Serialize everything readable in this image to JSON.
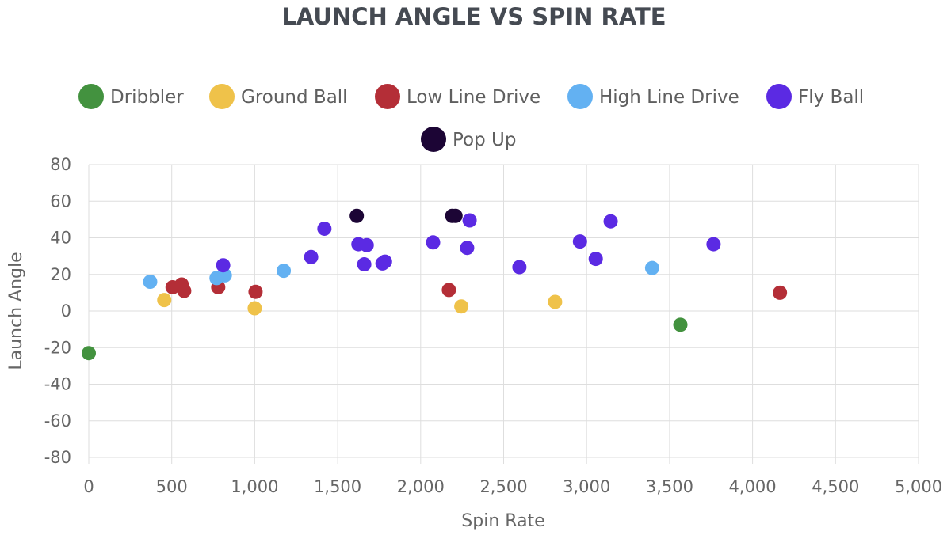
{
  "chart_data": {
    "type": "scatter",
    "title": "LAUNCH ANGLE VS SPIN RATE",
    "xlabel": "Spin Rate",
    "ylabel": "Launch Angle",
    "xlim": [
      0,
      5000
    ],
    "ylim": [
      -80,
      80
    ],
    "x_ticks": [
      0,
      500,
      1000,
      1500,
      2000,
      2500,
      3000,
      3500,
      4000,
      4500,
      5000
    ],
    "x_tick_labels": [
      "0",
      "500",
      "1,000",
      "1,500",
      "2,000",
      "2,500",
      "3,000",
      "3,500",
      "4,000",
      "4,500",
      "5,000"
    ],
    "y_ticks": [
      80,
      60,
      40,
      20,
      0,
      -20,
      -40,
      -60,
      -80
    ],
    "y_tick_labels": [
      "80",
      "60",
      "40",
      "20",
      "0",
      "-20",
      "-40",
      "-60",
      "-80"
    ],
    "grid": true,
    "legend_position": "top",
    "series": [
      {
        "name": "Dribbler",
        "color": "#43923f",
        "points": [
          [
            0,
            -23
          ],
          [
            3565,
            -7.5
          ]
        ]
      },
      {
        "name": "Ground Ball",
        "color": "#efc24a",
        "points": [
          [
            455,
            6
          ],
          [
            1000,
            1.5
          ],
          [
            2245,
            2.5
          ],
          [
            2810,
            5
          ]
        ]
      },
      {
        "name": "Low Line Drive",
        "color": "#b42e37",
        "points": [
          [
            505,
            13
          ],
          [
            560,
            14.5
          ],
          [
            575,
            11
          ],
          [
            780,
            13
          ],
          [
            1005,
            10.5
          ],
          [
            2170,
            11.5
          ],
          [
            4165,
            10
          ]
        ]
      },
      {
        "name": "High Line Drive",
        "color": "#63b1f2",
        "points": [
          [
            370,
            16
          ],
          [
            770,
            18
          ],
          [
            820,
            19.5
          ],
          [
            1175,
            22
          ],
          [
            3395,
            23.5
          ]
        ]
      },
      {
        "name": "Fly Ball",
        "color": "#5b2ae3",
        "points": [
          [
            810,
            25
          ],
          [
            1340,
            29.5
          ],
          [
            1420,
            45
          ],
          [
            1625,
            36.5
          ],
          [
            1675,
            36
          ],
          [
            1660,
            25.5
          ],
          [
            1770,
            26
          ],
          [
            1785,
            27
          ],
          [
            2075,
            37.5
          ],
          [
            2280,
            34.5
          ],
          [
            2295,
            49.5
          ],
          [
            2595,
            24
          ],
          [
            2960,
            38
          ],
          [
            3055,
            28.5
          ],
          [
            3145,
            49
          ],
          [
            3765,
            36.5
          ]
        ]
      },
      {
        "name": "Pop Up",
        "color": "#1c0535",
        "points": [
          [
            1615,
            52
          ],
          [
            2190,
            52
          ],
          [
            2210,
            52
          ]
        ]
      }
    ]
  }
}
